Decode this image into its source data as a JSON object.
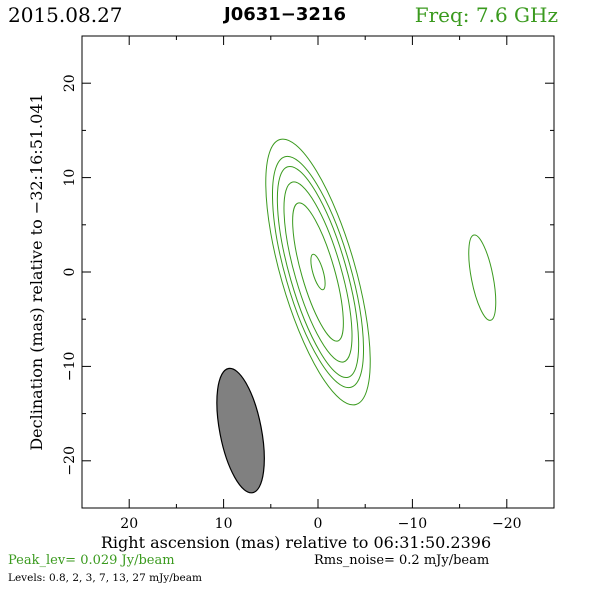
{
  "header": {
    "date": "2015.08.27",
    "source": "J0631−3216",
    "frequency": "Freq: 7.6 GHz"
  },
  "colors": {
    "contour": "#3a9a1e",
    "beam_fill": "#808080",
    "axes": "#000000"
  },
  "chart_data": {
    "type": "contour",
    "xlabel": "Right ascension (mas) relative to 06:31:50.2396",
    "ylabel": "Declination (mas) relative to −32:16:51.041",
    "xlim": [
      25,
      -25
    ],
    "ylim": [
      -25,
      25
    ],
    "x_ticks": [
      20,
      10,
      0,
      -10,
      -20
    ],
    "x_tick_labels": [
      "20",
      "10",
      "0",
      "−10",
      "−20"
    ],
    "y_ticks": [
      20,
      10,
      0,
      -10,
      -20
    ],
    "y_tick_labels": [
      "20",
      "10",
      "0",
      "−10",
      "−20"
    ],
    "grid": false,
    "components": [
      {
        "ra": 0.0,
        "dec": 0.0,
        "pa_deg": -16,
        "contours": [
          {
            "level_mjy": 27,
            "semi_major": 1.95,
            "semi_minor": 0.55
          },
          {
            "level_mjy": 13,
            "semi_major": 7.6,
            "semi_minor": 1.75
          },
          {
            "level_mjy": 7,
            "semi_major": 9.9,
            "semi_minor": 2.45
          },
          {
            "level_mjy": 3,
            "semi_major": 11.6,
            "semi_minor": 3.0
          },
          {
            "level_mjy": 2,
            "semi_major": 12.7,
            "semi_minor": 3.45
          },
          {
            "level_mjy": 0.8,
            "semi_major": 14.6,
            "semi_minor": 3.95
          }
        ]
      },
      {
        "ra": -17.4,
        "dec": -0.6,
        "pa_deg": -11,
        "contours": [
          {
            "level_mjy": 0.8,
            "semi_major": 4.6,
            "semi_minor": 1.15
          }
        ]
      }
    ],
    "beam": {
      "ra": 8.2,
      "dec": -16.8,
      "semi_major": 6.7,
      "semi_minor": 2.2,
      "pa_deg": -11
    }
  },
  "footer": {
    "peak": "Peak_lev=  0.029 Jy/beam",
    "rms": "Rms_noise=   0.2 mJy/beam",
    "levels": "Levels: 0.8,    2,    3,    7,   13,   27  mJy/beam"
  }
}
